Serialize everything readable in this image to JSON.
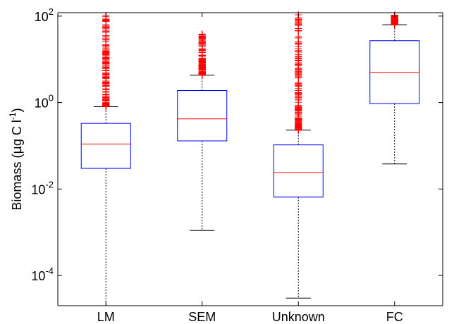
{
  "chart_data": {
    "type": "boxplot",
    "categories": [
      "LM",
      "SEM",
      "Unknown",
      "FC"
    ],
    "ylabel_parts": [
      "Biomass (",
      "µ",
      "g C l",
      "-1",
      ")"
    ],
    "yscale": "log",
    "ylim": [
      2e-05,
      120
    ],
    "yticks": [
      {
        "value": 0.0001,
        "base": "10",
        "exp": "-4"
      },
      {
        "value": 0.01,
        "base": "10",
        "exp": "-2"
      },
      {
        "value": 1,
        "base": "10",
        "exp": "0"
      },
      {
        "value": 100,
        "base": "10",
        "exp": "2"
      }
    ],
    "boxes": [
      {
        "category": "LM",
        "whisker_low": 2e-05,
        "q1": 0.03,
        "median": 0.11,
        "q3": 0.33,
        "whisker_high": 0.8,
        "outliers_low": 0.8,
        "outliers_high": 115
      },
      {
        "category": "SEM",
        "whisker_low": 0.0011,
        "q1": 0.13,
        "median": 0.42,
        "q3": 1.9,
        "whisker_high": 4.3,
        "outliers_low": 4.3,
        "outliers_high": 40
      },
      {
        "category": "Unknown",
        "whisker_low": 3e-05,
        "q1": 0.0065,
        "median": 0.024,
        "q3": 0.105,
        "whisker_high": 0.23,
        "outliers_low": 0.23,
        "outliers_high": 110
      },
      {
        "category": "FC",
        "whisker_low": 0.038,
        "q1": 0.95,
        "median": 5,
        "q3": 27,
        "whisker_high": 63,
        "outliers_low": 63,
        "outliers_high": 105
      }
    ],
    "colors": {
      "box": "#0000ff",
      "median": "#ff0000",
      "outlier": "#ff0000",
      "whisker": "#000000",
      "axes": "#000000"
    },
    "grid": false,
    "legend": "none"
  }
}
